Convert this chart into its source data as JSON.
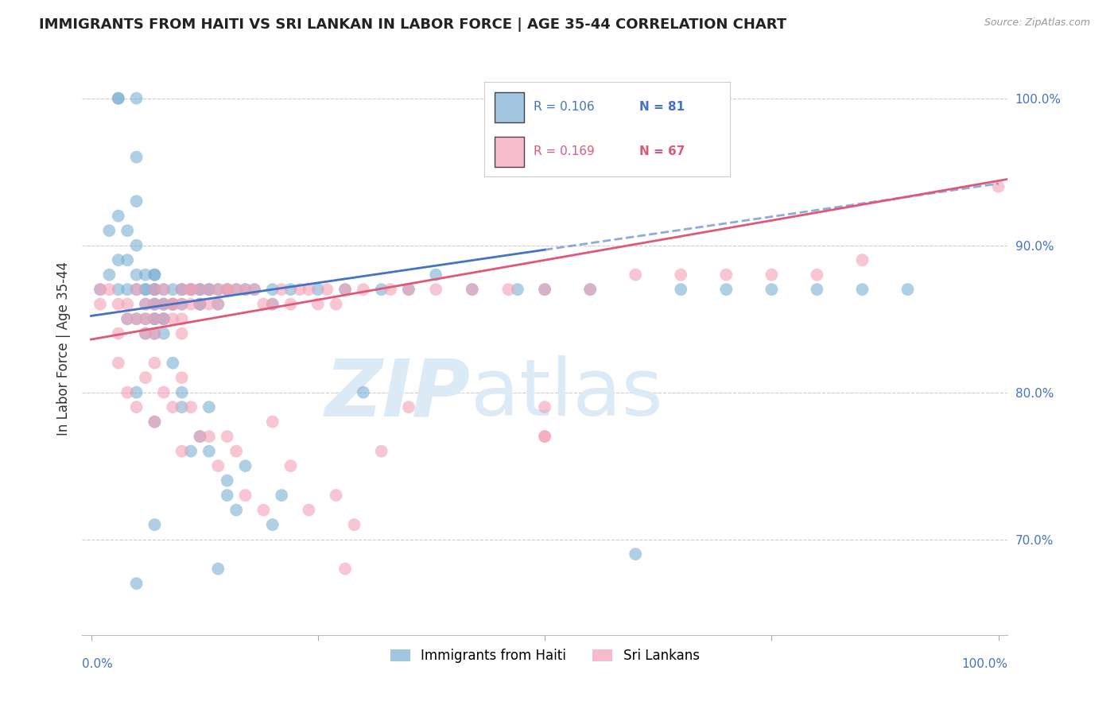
{
  "title": "IMMIGRANTS FROM HAITI VS SRI LANKAN IN LABOR FORCE | AGE 35-44 CORRELATION CHART",
  "source": "Source: ZipAtlas.com",
  "ylabel": "In Labor Force | Age 35-44",
  "ytick_labels": [
    "100.0%",
    "90.0%",
    "80.0%",
    "70.0%"
  ],
  "ytick_values": [
    1.0,
    0.9,
    0.8,
    0.7
  ],
  "xlim": [
    -0.01,
    1.01
  ],
  "ylim": [
    0.635,
    1.025
  ],
  "legend_r1": "R = 0.106",
  "legend_n1": "N = 81",
  "legend_r2": "R = 0.169",
  "legend_n2": "N = 67",
  "color_haiti": "#7bafd4",
  "color_srilanka": "#f4a0b5",
  "color_haiti_line": "#4472c4",
  "color_srilanka_line": "#e05878",
  "color_text_blue": "#4472c4",
  "color_text_pink": "#e05878",
  "watermark_color": "#dceaf5",
  "background_color": "#ffffff",
  "grid_color": "#cccccc",
  "title_fontsize": 13,
  "label_fontsize": 12,
  "tick_fontsize": 11,
  "haiti_line_x0": 0.0,
  "haiti_line_x1": 0.5,
  "haiti_line_y0": 0.852,
  "haiti_line_y1": 0.897,
  "srilanka_line_x0": 0.0,
  "srilanka_line_x1": 1.01,
  "srilanka_line_y0": 0.836,
  "srilanka_line_y1": 0.945,
  "haiti_x": [
    0.01,
    0.02,
    0.02,
    0.03,
    0.03,
    0.03,
    0.03,
    0.03,
    0.04,
    0.04,
    0.04,
    0.04,
    0.05,
    0.05,
    0.05,
    0.05,
    0.05,
    0.05,
    0.05,
    0.06,
    0.06,
    0.06,
    0.06,
    0.06,
    0.06,
    0.07,
    0.07,
    0.07,
    0.07,
    0.07,
    0.07,
    0.07,
    0.07,
    0.07,
    0.07,
    0.08,
    0.08,
    0.08,
    0.08,
    0.08,
    0.08,
    0.09,
    0.09,
    0.09,
    0.1,
    0.1,
    0.1,
    0.11,
    0.11,
    0.12,
    0.12,
    0.12,
    0.12,
    0.13,
    0.13,
    0.14,
    0.14,
    0.15,
    0.16,
    0.17,
    0.18,
    0.2,
    0.2,
    0.22,
    0.25,
    0.28,
    0.3,
    0.32,
    0.35,
    0.38,
    0.42,
    0.47,
    0.5,
    0.55,
    0.6,
    0.65,
    0.7,
    0.75,
    0.8,
    0.85,
    0.9
  ],
  "haiti_y": [
    0.87,
    0.88,
    0.91,
    1.0,
    1.0,
    0.92,
    0.89,
    0.87,
    0.85,
    0.87,
    0.89,
    0.91,
    1.0,
    0.96,
    0.93,
    0.9,
    0.88,
    0.87,
    0.85,
    0.87,
    0.88,
    0.86,
    0.85,
    0.84,
    0.87,
    0.87,
    0.88,
    0.87,
    0.86,
    0.87,
    0.88,
    0.86,
    0.85,
    0.85,
    0.84,
    0.87,
    0.86,
    0.86,
    0.85,
    0.85,
    0.84,
    0.87,
    0.86,
    0.86,
    0.87,
    0.87,
    0.86,
    0.87,
    0.87,
    0.86,
    0.87,
    0.86,
    0.87,
    0.87,
    0.87,
    0.86,
    0.87,
    0.87,
    0.87,
    0.87,
    0.87,
    0.87,
    0.86,
    0.87,
    0.87,
    0.87,
    0.8,
    0.87,
    0.87,
    0.88,
    0.87,
    0.87,
    0.87,
    0.87,
    0.69,
    0.87,
    0.87,
    0.87,
    0.87,
    0.87,
    0.87
  ],
  "haiti_y_low": [
    0.8,
    0.78,
    0.82,
    0.8,
    0.76,
    0.77,
    0.79,
    0.73,
    0.72,
    0.75,
    0.71,
    0.73,
    0.68,
    0.67,
    0.79,
    0.74,
    0.76,
    0.71
  ],
  "haiti_x_low": [
    0.05,
    0.07,
    0.09,
    0.1,
    0.11,
    0.12,
    0.13,
    0.15,
    0.16,
    0.17,
    0.2,
    0.21,
    0.14,
    0.05,
    0.1,
    0.15,
    0.13,
    0.07
  ],
  "srilanka_x": [
    0.01,
    0.01,
    0.02,
    0.03,
    0.03,
    0.04,
    0.04,
    0.05,
    0.05,
    0.06,
    0.06,
    0.06,
    0.07,
    0.07,
    0.07,
    0.07,
    0.08,
    0.08,
    0.08,
    0.09,
    0.09,
    0.09,
    0.1,
    0.1,
    0.1,
    0.1,
    0.11,
    0.11,
    0.11,
    0.12,
    0.12,
    0.13,
    0.13,
    0.14,
    0.14,
    0.15,
    0.15,
    0.16,
    0.17,
    0.18,
    0.19,
    0.2,
    0.21,
    0.22,
    0.23,
    0.24,
    0.25,
    0.26,
    0.27,
    0.28,
    0.3,
    0.33,
    0.35,
    0.38,
    0.42,
    0.46,
    0.5,
    0.55,
    0.6,
    0.65,
    0.7,
    0.75,
    0.8,
    0.85,
    1.0
  ],
  "srilanka_y": [
    0.86,
    0.87,
    0.87,
    0.86,
    0.84,
    0.85,
    0.86,
    0.85,
    0.87,
    0.86,
    0.85,
    0.84,
    0.85,
    0.86,
    0.84,
    0.87,
    0.86,
    0.85,
    0.87,
    0.86,
    0.86,
    0.85,
    0.87,
    0.86,
    0.85,
    0.84,
    0.87,
    0.86,
    0.87,
    0.87,
    0.86,
    0.86,
    0.87,
    0.87,
    0.86,
    0.87,
    0.87,
    0.87,
    0.87,
    0.87,
    0.86,
    0.86,
    0.87,
    0.86,
    0.87,
    0.87,
    0.86,
    0.87,
    0.86,
    0.87,
    0.87,
    0.87,
    0.87,
    0.87,
    0.87,
    0.87,
    0.87,
    0.87,
    0.88,
    0.88,
    0.88,
    0.88,
    0.88,
    0.89,
    0.94
  ],
  "srilanka_y_low": [
    0.82,
    0.8,
    0.79,
    0.81,
    0.82,
    0.78,
    0.8,
    0.79,
    0.81,
    0.76,
    0.79,
    0.77,
    0.77,
    0.75,
    0.77,
    0.76,
    0.73,
    0.72,
    0.78,
    0.75,
    0.72,
    0.73,
    0.71,
    0.68,
    0.76,
    0.79,
    0.77,
    0.77,
    0.79
  ],
  "srilanka_x_low": [
    0.03,
    0.04,
    0.05,
    0.06,
    0.07,
    0.07,
    0.08,
    0.09,
    0.1,
    0.1,
    0.11,
    0.12,
    0.13,
    0.14,
    0.15,
    0.16,
    0.17,
    0.19,
    0.2,
    0.22,
    0.24,
    0.27,
    0.29,
    0.28,
    0.32,
    0.35,
    0.5,
    0.5,
    0.5
  ]
}
